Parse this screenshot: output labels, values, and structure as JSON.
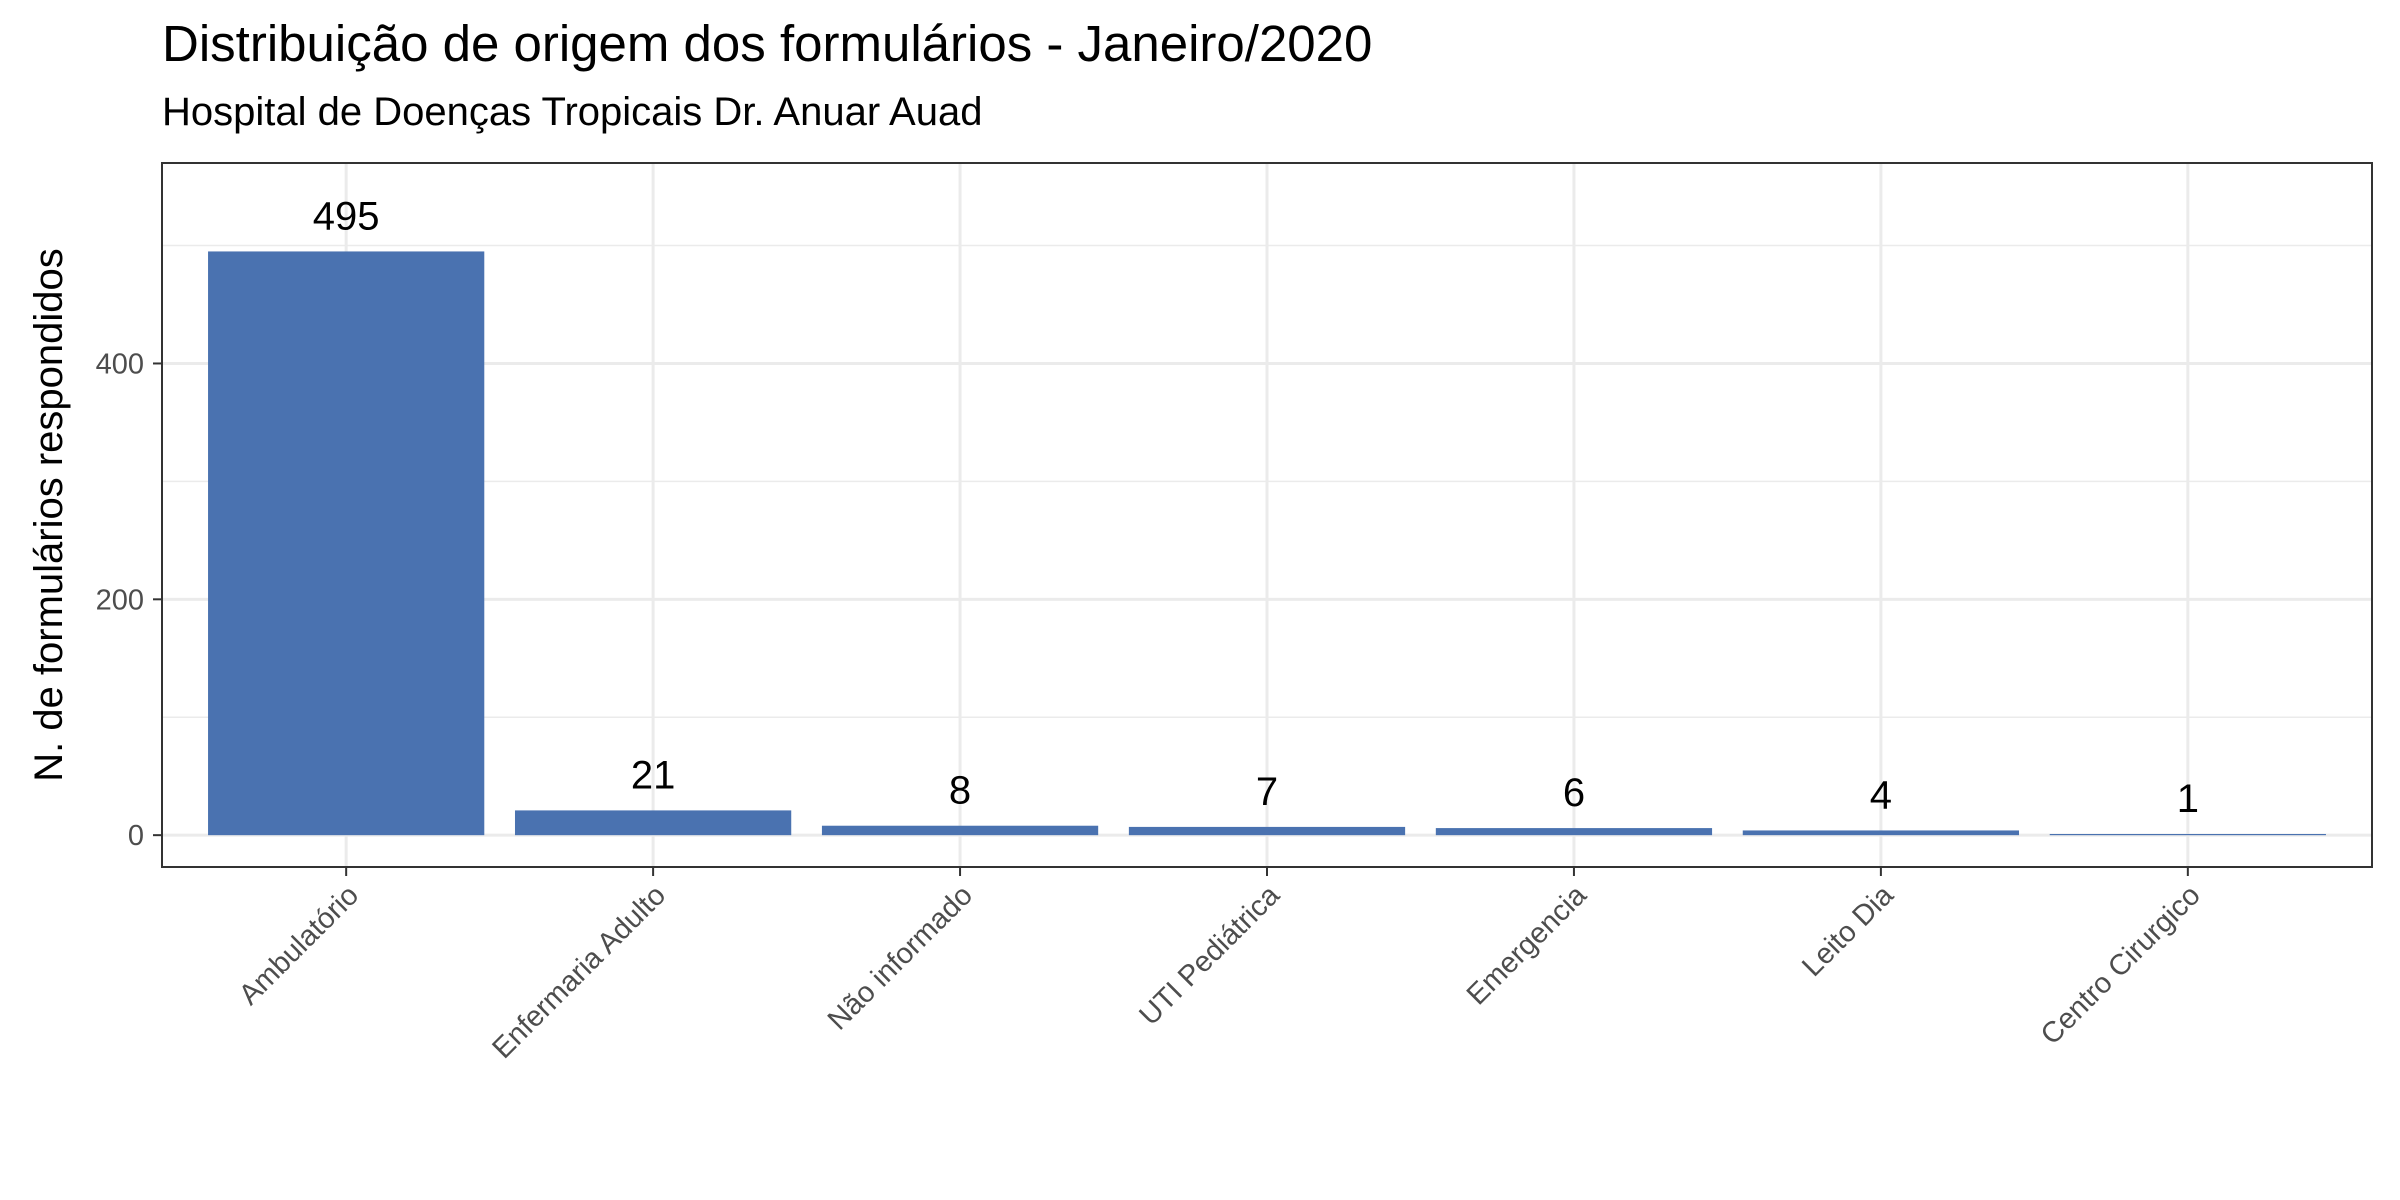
{
  "chart_data": {
    "type": "bar",
    "title": "Distribuição de origem dos formulários - Janeiro/2020",
    "subtitle": "Hospital de Doenças Tropicais Dr. Anuar Auad",
    "xlabel": "",
    "ylabel": "N. de formulários respondidos",
    "categories": [
      "Ambulatório",
      "Enfermaria Adulto",
      "Não informado",
      "UTI Pediátrica",
      "Emergencia",
      "Leito Dia",
      "Centro Cirurgico"
    ],
    "values": [
      495,
      21,
      8,
      7,
      6,
      4,
      1
    ],
    "ylim": [
      -27,
      570
    ],
    "yticks": [
      0,
      200,
      400
    ],
    "grid": true,
    "legend": "none",
    "colors": {
      "bar": "#4a72b0",
      "grid": "#ebebeb",
      "panel_border": "#333333",
      "tick_text": "#4d4d4d"
    }
  }
}
